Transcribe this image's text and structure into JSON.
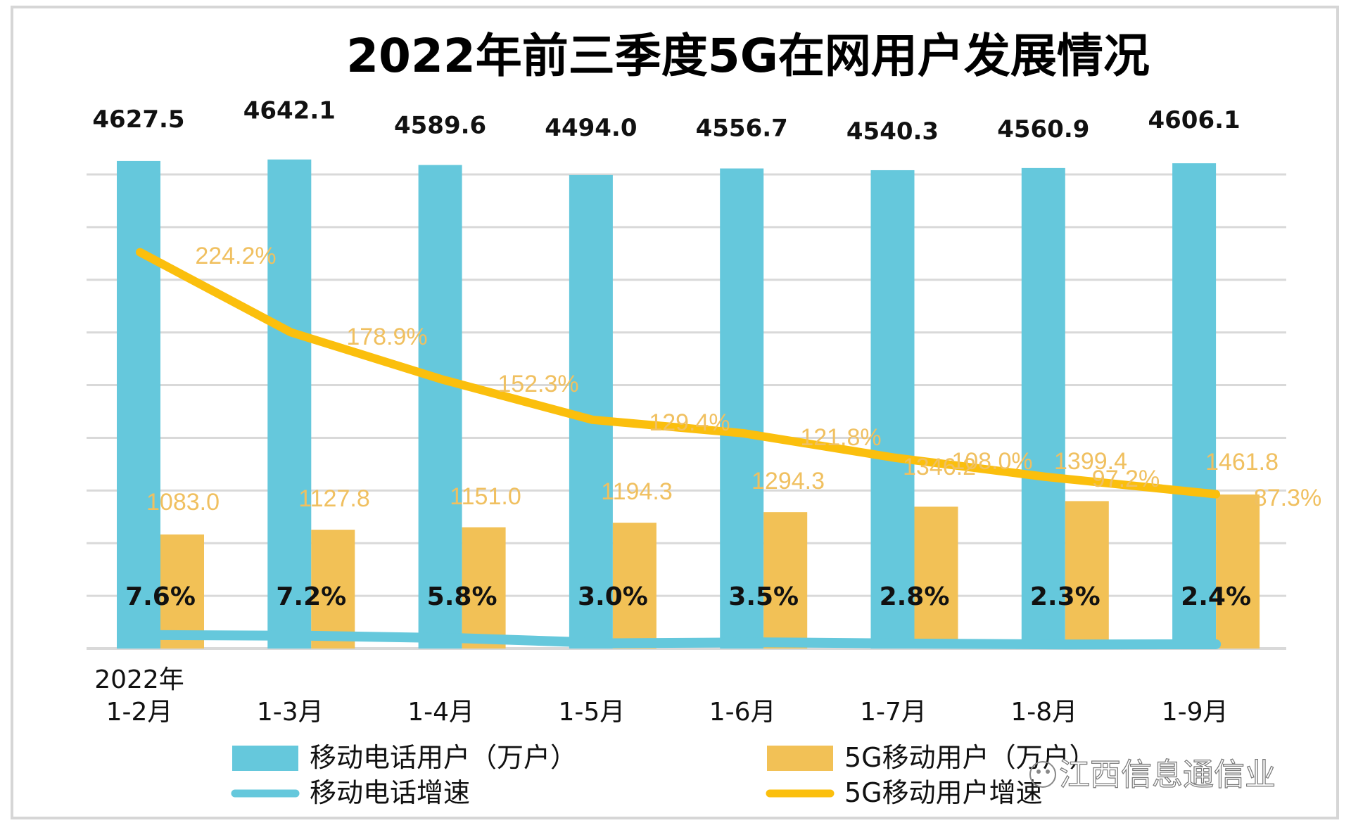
{
  "chart_data": {
    "type": "bar",
    "title": "2022年前三季度5G在网用户发展情况",
    "categories": [
      "2022年\n1-2月",
      "1-3月",
      "1-4月",
      "1-5月",
      "1-6月",
      "1-7月",
      "1-8月",
      "1-9月"
    ],
    "category_lines": [
      [
        "2022年",
        "1-2月"
      ],
      [
        "1-3月"
      ],
      [
        "1-4月"
      ],
      [
        "1-5月"
      ],
      [
        "1-6月"
      ],
      [
        "1-7月"
      ],
      [
        "1-8月"
      ],
      [
        "1-9月"
      ]
    ],
    "series": [
      {
        "name": "移动电话用户（万户）",
        "kind": "bar",
        "color": "#65c8dc",
        "values": [
          4627.5,
          4642.1,
          4589.6,
          4494.0,
          4556.7,
          4540.3,
          4560.9,
          4606.1
        ],
        "labels": [
          "4627.5",
          "4642.1",
          "4589.6",
          "4494.0",
          "4556.7",
          "4540.3",
          "4560.9",
          "4606.1"
        ]
      },
      {
        "name": "5G移动用户（万户）",
        "kind": "bar",
        "color": "#f2c156",
        "values": [
          1083.0,
          1127.8,
          1151.0,
          1194.3,
          1294.3,
          1346.2,
          1399.4,
          1461.8
        ],
        "labels": [
          "1083.0",
          "1127.8",
          "1151.0",
          "1194.3",
          "1294.3",
          "1346.2",
          "1399.4",
          "1461.8"
        ]
      },
      {
        "name": "移动电话增速",
        "kind": "line",
        "color": "#65c8dc",
        "unit": "%",
        "values": [
          7.6,
          7.2,
          5.8,
          3.0,
          3.5,
          2.8,
          2.3,
          2.4
        ],
        "labels": [
          "7.6%",
          "7.2%",
          "5.8%",
          "3.0%",
          "3.5%",
          "2.8%",
          "2.3%",
          "2.4%"
        ]
      },
      {
        "name": "5G移动用户增速",
        "kind": "line",
        "color": "#fbbf0d",
        "unit": "%",
        "values": [
          224.2,
          178.9,
          152.3,
          129.4,
          121.8,
          108.0,
          97.2,
          87.3
        ],
        "labels": [
          "224.2%",
          "178.9%",
          "152.3%",
          "129.4%",
          "121.8%",
          "108.0%",
          "97.2%",
          "87.3%"
        ]
      }
    ],
    "ylim": [
      0,
      4500
    ],
    "y_gridline_step": 500,
    "y2lim": [
      0,
      270
    ],
    "grid": true,
    "axes_tick_labels_visible": false,
    "legend": {
      "placement": "bottom",
      "entries": [
        {
          "label": "移动电话用户（万户）",
          "marker": "box",
          "color": "#65c8dc"
        },
        {
          "label": "5G移动用户（万户）",
          "marker": "box",
          "color": "#f2c156"
        },
        {
          "label": "移动电话增速",
          "marker": "line",
          "color": "#65c8dc"
        },
        {
          "label": "5G移动用户增速",
          "marker": "line",
          "color": "#fbbf0d"
        }
      ]
    }
  },
  "watermark": "江西信息通信业",
  "colors": {
    "grid": "#d9d9d9",
    "frame": "#d6d6d6",
    "orange_label": "#f0c060"
  }
}
